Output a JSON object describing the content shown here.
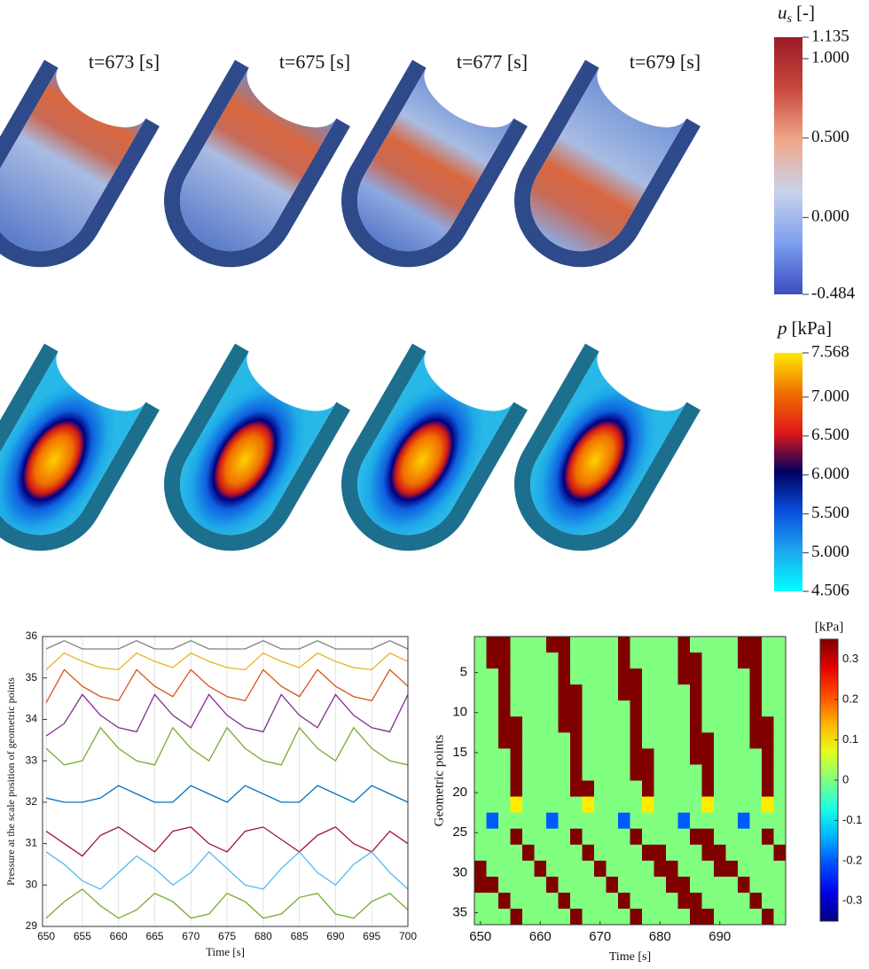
{
  "panels": {
    "times": [
      "t=673 [s]",
      "t=675 [s]",
      "t=677 [s]",
      "t=679 [s]"
    ]
  },
  "colorbars": [
    {
      "label": "u",
      "subscript": "s",
      "unit": "[-]",
      "lim": [
        -0.484,
        1.135
      ],
      "ticks": [
        1.135,
        {
          "value": 1,
          "label": "1.000"
        },
        {
          "value": 0.5,
          "label": "0.500"
        },
        {
          "value": 0,
          "label": "0.000"
        },
        -0.484
      ],
      "colors": [
        "#3b4cc0",
        "#7d9ff0",
        "#c9d3ea",
        "#f1a789",
        "#c8483e",
        "#9b1c2a"
      ]
    },
    {
      "label": "p",
      "unit": "[kPa]",
      "lim": [
        4.506,
        7.568
      ],
      "ticks": [
        7.568,
        {
          "value": 7,
          "label": "7.000"
        },
        {
          "value": 6.5,
          "label": "6.500"
        },
        {
          "value": 6,
          "label": "6.000"
        },
        {
          "value": 5.5,
          "label": "5.500"
        },
        {
          "value": 5,
          "label": "5.000"
        },
        4.506
      ],
      "colors": [
        "#00ffff",
        "#1ea8f0",
        "#0a50e0",
        "#000060",
        "#e01818",
        "#f07000",
        "#ffe800"
      ]
    }
  ],
  "chart_data": [
    {
      "type": "line",
      "xlabel": "Time [s]",
      "ylabel": "Pressure at the scale position of geometric points",
      "x": [
        650,
        652.5,
        655,
        657.5,
        660,
        662.5,
        665,
        667.5,
        670,
        672.5,
        675,
        677.5,
        680,
        682.5,
        685,
        687.5,
        690,
        692.5,
        695,
        697.5,
        700
      ],
      "xlim": [
        649.5,
        700
      ],
      "ylim": [
        29,
        36
      ],
      "xticks": [
        650,
        655,
        660,
        665,
        670,
        675,
        680,
        685,
        690,
        695,
        700
      ],
      "yticks": [
        29,
        30,
        31,
        32,
        33,
        34,
        35,
        36
      ],
      "grid": true,
      "series": [
        {
          "color": "#7f7f7f",
          "values": [
            35.7,
            35.9,
            35.7,
            35.7,
            35.7,
            35.9,
            35.7,
            35.7,
            35.9,
            35.7,
            35.7,
            35.7,
            35.9,
            35.7,
            35.7,
            35.9,
            35.7,
            35.7,
            35.7,
            35.9,
            35.7
          ]
        },
        {
          "color": "#edb120",
          "values": [
            35.2,
            35.6,
            35.4,
            35.25,
            35.2,
            35.6,
            35.4,
            35.25,
            35.6,
            35.4,
            35.25,
            35.2,
            35.6,
            35.4,
            35.25,
            35.6,
            35.4,
            35.25,
            35.2,
            35.6,
            35.4
          ]
        },
        {
          "color": "#d95319",
          "values": [
            34.4,
            35.2,
            34.8,
            34.55,
            34.45,
            35.2,
            34.8,
            34.55,
            35.2,
            34.8,
            34.55,
            34.45,
            35.2,
            34.8,
            34.55,
            35.2,
            34.8,
            34.55,
            34.45,
            35.2,
            34.8
          ]
        },
        {
          "color": "#7e2f8e",
          "values": [
            33.6,
            33.9,
            34.6,
            34.1,
            33.8,
            33.7,
            34.6,
            34.1,
            33.8,
            34.6,
            34.1,
            33.8,
            33.7,
            34.6,
            34.1,
            33.8,
            34.6,
            34.1,
            33.8,
            33.7,
            34.6
          ]
        },
        {
          "color": "#77ac30",
          "values": [
            33.3,
            32.9,
            33.0,
            33.8,
            33.3,
            33.0,
            32.9,
            33.8,
            33.3,
            33.0,
            33.8,
            33.3,
            33.0,
            32.9,
            33.8,
            33.3,
            33.0,
            33.8,
            33.3,
            33.0,
            32.9
          ]
        },
        {
          "color": "#0072bd",
          "values": [
            32.1,
            32.0,
            32.0,
            32.1,
            32.4,
            32.2,
            32.0,
            32.0,
            32.4,
            32.2,
            32.0,
            32.4,
            32.2,
            32.0,
            32.0,
            32.4,
            32.2,
            32.0,
            32.4,
            32.2,
            32.0
          ]
        },
        {
          "color": "#a2142f",
          "values": [
            31.3,
            31.0,
            30.7,
            31.2,
            31.4,
            31.1,
            30.8,
            31.3,
            31.4,
            31.0,
            30.8,
            31.3,
            31.4,
            31.1,
            30.8,
            31.2,
            31.4,
            31.0,
            30.8,
            31.3,
            31.0
          ]
        },
        {
          "color": "#4dbeee",
          "values": [
            30.8,
            30.5,
            30.1,
            29.9,
            30.3,
            30.7,
            30.4,
            30.0,
            30.3,
            30.8,
            30.4,
            30.0,
            29.9,
            30.4,
            30.8,
            30.3,
            30.0,
            30.5,
            30.8,
            30.3,
            29.9
          ]
        },
        {
          "color": "#77ac30",
          "values": [
            29.2,
            29.6,
            29.9,
            29.5,
            29.2,
            29.4,
            29.8,
            29.6,
            29.2,
            29.3,
            29.8,
            29.6,
            29.2,
            29.3,
            29.7,
            29.8,
            29.3,
            29.2,
            29.6,
            29.8,
            29.4
          ]
        }
      ]
    },
    {
      "type": "heatmap",
      "xlabel": "Time [s]",
      "ylabel": "Geometric points",
      "xlim": [
        649,
        701
      ],
      "ylim": [
        0.5,
        36.5
      ],
      "xticks": [
        650,
        660,
        670,
        680,
        690
      ],
      "yticks": [
        5,
        10,
        15,
        20,
        25,
        30,
        35
      ],
      "x": [
        650,
        652,
        654,
        656,
        658,
        660,
        662,
        664,
        666,
        668,
        670,
        672,
        674,
        676,
        678,
        680,
        682,
        684,
        686,
        688,
        690,
        692,
        694,
        696,
        698,
        700
      ],
      "y": [
        2,
        4,
        6,
        8,
        10,
        12,
        14,
        16,
        18,
        20,
        22,
        24,
        26,
        28,
        30,
        32,
        34,
        36
      ],
      "z": [
        [
          0,
          0.35,
          0.35,
          0,
          0,
          0,
          0.35,
          0.35,
          0,
          0,
          0,
          0,
          0.35,
          0,
          0,
          0,
          0,
          0.35,
          0,
          0,
          0,
          0,
          0.35,
          0.35,
          0,
          0
        ],
        [
          0,
          0.35,
          0.35,
          0,
          0,
          0,
          0,
          0.35,
          0,
          0,
          0,
          0,
          0.35,
          0,
          0,
          0,
          0,
          0.35,
          0.35,
          0,
          0,
          0,
          0.35,
          0.35,
          0,
          0
        ],
        [
          0,
          0,
          0.35,
          0,
          0,
          0,
          0,
          0.35,
          0,
          0,
          0,
          0,
          0.35,
          0.35,
          0,
          0,
          0,
          0.35,
          0.35,
          0,
          0,
          0,
          0,
          0.35,
          0,
          0
        ],
        [
          0,
          0,
          0.35,
          0,
          0,
          0,
          0,
          0.35,
          0.35,
          0,
          0,
          0,
          0.35,
          0.35,
          0,
          0,
          0,
          0,
          0.35,
          0,
          0,
          0,
          0,
          0.35,
          0,
          0
        ],
        [
          0,
          0,
          0.35,
          0,
          0,
          0,
          0,
          0.35,
          0.35,
          0,
          0,
          0,
          0,
          0.35,
          0,
          0,
          0,
          0,
          0.35,
          0,
          0,
          0,
          0,
          0.35,
          0,
          0
        ],
        [
          0,
          0,
          0.35,
          0.35,
          0,
          0,
          0,
          0.35,
          0.35,
          0,
          0,
          0,
          0,
          0.35,
          0,
          0,
          0,
          0,
          0.35,
          0,
          0,
          0,
          0,
          0.35,
          0.35,
          0
        ],
        [
          0,
          0,
          0.35,
          0.35,
          0,
          0,
          0,
          0,
          0.35,
          0,
          0,
          0,
          0,
          0.35,
          0,
          0,
          0,
          0,
          0.35,
          0.35,
          0,
          0,
          0,
          0.35,
          0.35,
          0
        ],
        [
          0,
          0,
          0,
          0.35,
          0,
          0,
          0,
          0,
          0.35,
          0,
          0,
          0,
          0,
          0.35,
          0.35,
          0,
          0,
          0,
          0.35,
          0.35,
          0,
          0,
          0,
          0,
          0.35,
          0
        ],
        [
          0,
          0,
          0,
          0.35,
          0,
          0,
          0,
          0,
          0.35,
          0,
          0,
          0,
          0,
          0.35,
          0.35,
          0,
          0,
          0,
          0,
          0.35,
          0,
          0,
          0,
          0,
          0.35,
          0
        ],
        [
          0,
          0,
          0,
          0.35,
          0,
          0,
          0,
          0,
          0.35,
          0.35,
          0,
          0,
          0,
          0,
          0.35,
          0,
          0,
          0,
          0,
          0.35,
          0,
          0,
          0,
          0,
          0.35,
          0
        ],
        [
          0,
          0,
          0,
          0.1,
          0,
          0,
          0,
          0,
          0,
          0.1,
          0,
          0,
          0,
          0,
          0.1,
          0,
          0,
          0,
          0,
          0.1,
          0,
          0,
          0,
          0,
          0.1,
          0
        ],
        [
          0,
          -0.2,
          0,
          0,
          0,
          0,
          -0.2,
          0,
          0,
          0,
          0,
          0,
          -0.2,
          0,
          0,
          0,
          0,
          -0.2,
          0,
          0,
          0,
          0,
          -0.2,
          0,
          0,
          0
        ],
        [
          0,
          0,
          0,
          0.35,
          0,
          0,
          0,
          0,
          0.35,
          0,
          0,
          0,
          0,
          0.35,
          0,
          0,
          0,
          0,
          0.35,
          0.35,
          0,
          0,
          0,
          0,
          0.35,
          0
        ],
        [
          0,
          0,
          0,
          0,
          0.35,
          0,
          0,
          0,
          0,
          0.35,
          0,
          0,
          0,
          0,
          0.35,
          0.35,
          0,
          0,
          0,
          0.35,
          0.35,
          0,
          0,
          0,
          0,
          0.35
        ],
        [
          0.35,
          0,
          0,
          0,
          0,
          0.35,
          0,
          0,
          0,
          0,
          0.35,
          0,
          0,
          0,
          0,
          0.35,
          0.35,
          0,
          0,
          0,
          0.35,
          0.35,
          0,
          0,
          0,
          0
        ],
        [
          0.35,
          0.35,
          0,
          0,
          0,
          0,
          0.35,
          0,
          0,
          0,
          0,
          0.35,
          0,
          0,
          0,
          0,
          0.35,
          0.35,
          0,
          0,
          0,
          0,
          0.35,
          0,
          0,
          0
        ],
        [
          0,
          0,
          0.35,
          0,
          0,
          0,
          0,
          0.35,
          0,
          0,
          0,
          0,
          0.35,
          0,
          0,
          0,
          0,
          0.35,
          0.35,
          0,
          0,
          0,
          0,
          0.35,
          0,
          0
        ],
        [
          0,
          0,
          0,
          0.35,
          0,
          0,
          0,
          0,
          0.35,
          0,
          0,
          0,
          0,
          0.35,
          0,
          0,
          0,
          0,
          0.35,
          0.35,
          0,
          0,
          0,
          0,
          0.35,
          0
        ]
      ],
      "colorbar": {
        "label": "[kPa]",
        "clim": [
          -0.35,
          0.35
        ],
        "ticks": [
          -0.3,
          -0.2,
          -0.1,
          0,
          0.1,
          0.2,
          0.3
        ]
      }
    }
  ]
}
